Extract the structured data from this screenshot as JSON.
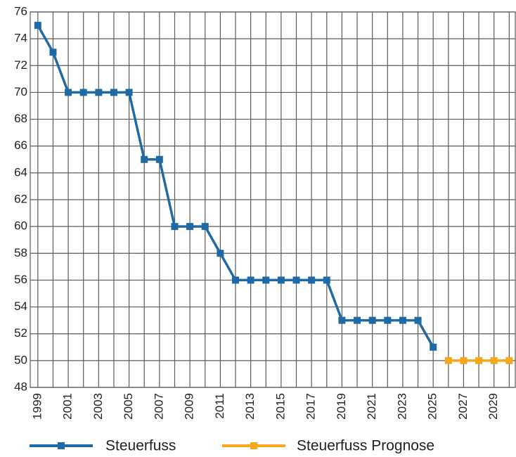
{
  "chart_data": {
    "type": "line",
    "x": [
      1999,
      2000,
      2001,
      2002,
      2003,
      2004,
      2005,
      2006,
      2007,
      2008,
      2009,
      2010,
      2011,
      2012,
      2013,
      2014,
      2015,
      2016,
      2017,
      2018,
      2019,
      2020,
      2021,
      2022,
      2023,
      2024,
      2025,
      2026,
      2027,
      2028,
      2029,
      2030
    ],
    "series": [
      {
        "name": "Steuerfuss",
        "color": "#1f6aa5",
        "values": [
          75,
          73,
          70,
          70,
          70,
          70,
          70,
          65,
          65,
          60,
          60,
          60,
          58,
          56,
          56,
          56,
          56,
          56,
          56,
          56,
          53,
          53,
          53,
          53,
          53,
          53,
          51,
          null,
          null,
          null,
          null,
          null
        ]
      },
      {
        "name": "Steuerfuss Prognose",
        "color": "#f5a81c",
        "values": [
          null,
          null,
          null,
          null,
          null,
          null,
          null,
          null,
          null,
          null,
          null,
          null,
          null,
          null,
          null,
          null,
          null,
          null,
          null,
          null,
          null,
          null,
          null,
          null,
          null,
          null,
          null,
          50,
          50,
          50,
          50,
          50
        ]
      }
    ],
    "xlim": [
      1998.5,
      2030.4
    ],
    "xticks": [
      1999,
      2001,
      2003,
      2005,
      2007,
      2009,
      2011,
      2013,
      2015,
      2017,
      2019,
      2021,
      2023,
      2025,
      2027,
      2029
    ],
    "xticks_minor": [
      2000,
      2002,
      2004,
      2006,
      2008,
      2010,
      2012,
      2014,
      2016,
      2018,
      2020,
      2022,
      2024,
      2026,
      2028,
      2030
    ],
    "ylim": [
      48,
      76
    ],
    "yticks": [
      48,
      50,
      52,
      54,
      56,
      58,
      60,
      62,
      64,
      66,
      68,
      70,
      72,
      74,
      76
    ],
    "grid": true
  }
}
